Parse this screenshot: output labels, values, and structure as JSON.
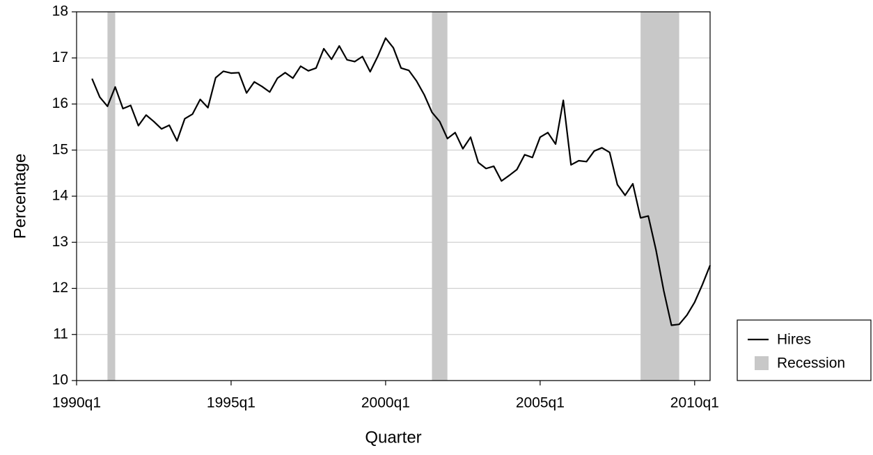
{
  "chart_data": {
    "type": "line",
    "x_label": "Quarter",
    "y_label": "Percentage",
    "x": [
      "1990q3",
      "1990q4",
      "1991q1",
      "1991q2",
      "1991q3",
      "1991q4",
      "1992q1",
      "1992q2",
      "1992q3",
      "1992q4",
      "1993q1",
      "1993q2",
      "1993q3",
      "1993q4",
      "1994q1",
      "1994q2",
      "1994q3",
      "1994q4",
      "1995q1",
      "1995q2",
      "1995q3",
      "1995q4",
      "1996q1",
      "1996q2",
      "1996q3",
      "1996q4",
      "1997q1",
      "1997q2",
      "1997q3",
      "1997q4",
      "1998q1",
      "1998q2",
      "1998q3",
      "1998q4",
      "1999q1",
      "1999q2",
      "1999q3",
      "1999q4",
      "2000q1",
      "2000q2",
      "2000q3",
      "2000q4",
      "2001q1",
      "2001q2",
      "2001q3",
      "2001q4",
      "2002q1",
      "2002q2",
      "2002q3",
      "2002q4",
      "2003q1",
      "2003q2",
      "2003q3",
      "2003q4",
      "2004q1",
      "2004q2",
      "2004q3",
      "2004q4",
      "2005q1",
      "2005q2",
      "2005q3",
      "2005q4",
      "2006q1",
      "2006q2",
      "2006q3",
      "2006q4",
      "2007q1",
      "2007q2",
      "2007q3",
      "2007q4",
      "2008q1",
      "2008q2",
      "2008q3",
      "2008q4",
      "2009q1",
      "2009q2",
      "2009q3",
      "2009q4",
      "2010q1",
      "2010q2",
      "2010q3"
    ],
    "series": [
      {
        "name": "Hires",
        "color": "#000000",
        "values": [
          16.55,
          16.15,
          15.95,
          16.37,
          15.9,
          15.97,
          15.53,
          15.76,
          15.62,
          15.46,
          15.54,
          15.2,
          15.68,
          15.78,
          16.1,
          15.92,
          16.57,
          16.71,
          16.67,
          16.68,
          16.24,
          16.48,
          16.38,
          16.26,
          16.56,
          16.68,
          16.56,
          16.82,
          16.72,
          16.78,
          17.2,
          16.97,
          17.26,
          16.96,
          16.92,
          17.03,
          16.7,
          17.04,
          17.43,
          17.22,
          16.78,
          16.73,
          16.5,
          16.2,
          15.82,
          15.62,
          15.25,
          15.38,
          15.03,
          15.28,
          14.73,
          14.6,
          14.65,
          14.33,
          14.45,
          14.58,
          14.9,
          14.84,
          15.28,
          15.38,
          15.13,
          16.08,
          14.68,
          14.77,
          14.75,
          14.98,
          15.05,
          14.95,
          14.25,
          14.02,
          14.27,
          13.53,
          13.57,
          12.83,
          11.95,
          11.2,
          11.22,
          11.42,
          11.7,
          12.08,
          12.5
        ]
      }
    ],
    "shading": {
      "name": "Recession",
      "color": "#c8c8c8",
      "periods": [
        [
          "1991q1",
          "1991q2"
        ],
        [
          "2001q3",
          "2002q1"
        ],
        [
          "2008q2",
          "2009q3"
        ]
      ]
    },
    "xlim": [
      "1990q1",
      "2010q3"
    ],
    "xticks": [
      "1990q1",
      "1995q1",
      "2000q1",
      "2005q1",
      "2010q1"
    ],
    "ylim": [
      10,
      18
    ],
    "yticks": [
      10,
      11,
      12,
      13,
      14,
      15,
      16,
      17,
      18
    ],
    "grid": true
  }
}
